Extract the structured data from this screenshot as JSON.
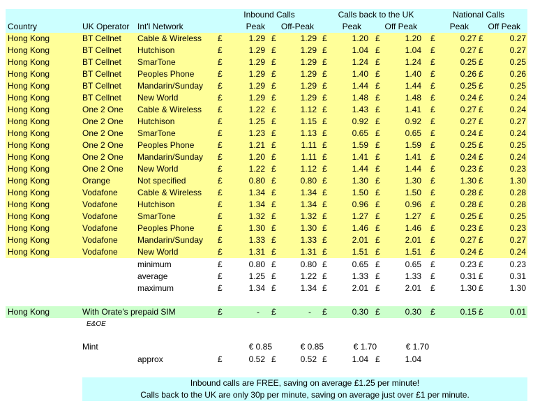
{
  "header": {
    "groups": [
      "Inbound Calls",
      "Calls back to the UK",
      "National Calls"
    ],
    "columns": [
      "Country",
      "UK Operator",
      "Int'l Network",
      "Peak",
      "Off-Peak",
      "Peak",
      "Off Peak",
      "Peak",
      "Off Peak"
    ]
  },
  "currency": "£",
  "rows": [
    [
      "Hong Kong",
      "BT Cellnet",
      "Cable & Wireless",
      "1.29",
      "1.29",
      "1.20",
      "1.20",
      "0.27",
      "0.27"
    ],
    [
      "Hong Kong",
      "BT Cellnet",
      "Hutchison",
      "1.29",
      "1.29",
      "1.04",
      "1.04",
      "0.27",
      "0.27"
    ],
    [
      "Hong Kong",
      "BT Cellnet",
      "SmarTone",
      "1.29",
      "1.29",
      "1.24",
      "1.24",
      "0.25",
      "0.25"
    ],
    [
      "Hong Kong",
      "BT Cellnet",
      "Peoples Phone",
      "1.29",
      "1.29",
      "1.40",
      "1.40",
      "0.26",
      "0.26"
    ],
    [
      "Hong Kong",
      "BT Cellnet",
      "Mandarin/Sunday",
      "1.29",
      "1.29",
      "1.44",
      "1.44",
      "0.25",
      "0.25"
    ],
    [
      "Hong Kong",
      "BT Cellnet",
      "New World",
      "1.29",
      "1.29",
      "1.48",
      "1.48",
      "0.24",
      "0.24"
    ],
    [
      "Hong Kong",
      "One 2 One",
      "Cable & Wireless",
      "1.22",
      "1.12",
      "1.43",
      "1.41",
      "0.27",
      "0.24"
    ],
    [
      "Hong Kong",
      "One 2 One",
      "Hutchison",
      "1.25",
      "1.15",
      "0.92",
      "0.92",
      "0.27",
      "0.27"
    ],
    [
      "Hong Kong",
      "One 2 One",
      "SmarTone",
      "1.23",
      "1.13",
      "0.65",
      "0.65",
      "0.24",
      "0.24"
    ],
    [
      "Hong Kong",
      "One 2 One",
      "Peoples Phone",
      "1.21",
      "1.11",
      "1.59",
      "1.59",
      "0.25",
      "0.25"
    ],
    [
      "Hong Kong",
      "One 2 One",
      "Mandarin/Sunday",
      "1.20",
      "1.11",
      "1.41",
      "1.41",
      "0.24",
      "0.24"
    ],
    [
      "Hong Kong",
      "One 2 One",
      "New World",
      "1.22",
      "1.12",
      "1.44",
      "1.44",
      "0.23",
      "0.23"
    ],
    [
      "Hong Kong",
      "Orange",
      "Not specified",
      "0.80",
      "0.80",
      "1.30",
      "1.30",
      "1.30",
      "1.30"
    ],
    [
      "Hong Kong",
      "Vodafone",
      "Cable & Wireless",
      "1.34",
      "1.34",
      "1.50",
      "1.50",
      "0.28",
      "0.28"
    ],
    [
      "Hong Kong",
      "Vodafone",
      "Hutchison",
      "1.34",
      "1.34",
      "0.96",
      "0.96",
      "0.28",
      "0.28"
    ],
    [
      "Hong Kong",
      "Vodafone",
      "SmarTone",
      "1.32",
      "1.32",
      "1.27",
      "1.27",
      "0.25",
      "0.25"
    ],
    [
      "Hong Kong",
      "Vodafone",
      "Peoples Phone",
      "1.30",
      "1.30",
      "1.46",
      "1.46",
      "0.23",
      "0.23"
    ],
    [
      "Hong Kong",
      "Vodafone",
      "Mandarin/Sunday",
      "1.33",
      "1.33",
      "2.01",
      "2.01",
      "0.27",
      "0.27"
    ],
    [
      "Hong Kong",
      "Vodafone",
      "New World",
      "1.31",
      "1.31",
      "1.51",
      "1.51",
      "0.24",
      "0.24"
    ]
  ],
  "stats": [
    [
      "minimum",
      "0.80",
      "0.80",
      "0.65",
      "0.65",
      "0.23",
      "0.23"
    ],
    [
      "average",
      "1.25",
      "1.22",
      "1.33",
      "1.33",
      "0.31",
      "0.31"
    ],
    [
      "maximum",
      "1.34",
      "1.34",
      "2.01",
      "2.01",
      "1.30",
      "1.30"
    ]
  ],
  "orate": {
    "country": "Hong Kong",
    "label": "With Orate's prepaid SIM",
    "values": [
      "-",
      "-",
      "0.30",
      "0.30",
      "0.15",
      "0.01"
    ]
  },
  "eoe": "E&OE",
  "mint": {
    "label": "Mint",
    "euro_values": [
      "€ 0.85",
      "€ 0.85",
      "€ 1.70",
      "€ 1.70"
    ],
    "approx_label": "approx",
    "approx_values": [
      "0.52",
      "0.52",
      "1.04",
      "1.04"
    ]
  },
  "notes": [
    "Inbound calls are FREE, saving on average £1.25 per minute!",
    "Calls back to the UK are only 30p per minute, saving on average just over £1 per minute."
  ]
}
